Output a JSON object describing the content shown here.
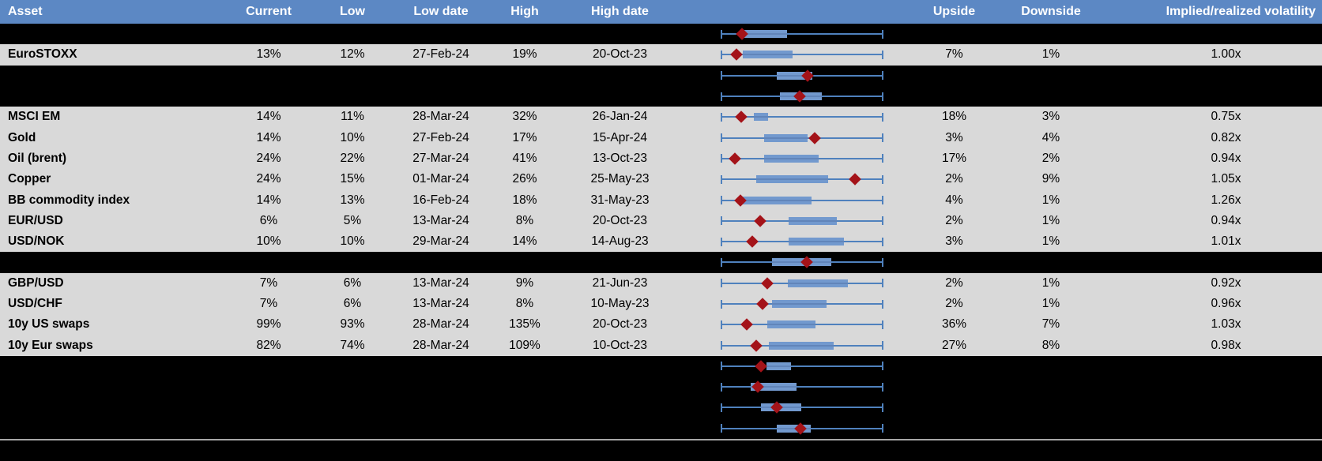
{
  "colors": {
    "header_bg": "#5C88C4",
    "header_text": "#FFFFFF",
    "row_bg": "#D9D9D9",
    "hidden_row_bg": "#000000",
    "body_text": "#000000",
    "box_fill": "#7299CE",
    "whisker_blue": "#4F81BD",
    "marker_red": "#A41319",
    "divider_gray": "#A6A6A6"
  },
  "header": {
    "labels": {
      "asset": "Asset",
      "current": "Current",
      "low": "Low",
      "low_date": "Low date",
      "high": "High",
      "high_date": "High date",
      "chart": "",
      "upside": "Upside",
      "downside": "Downside",
      "implied_realized": "Implied/realized volatility"
    }
  },
  "chart_data": {
    "type": "table",
    "columns": [
      "Asset",
      "Current",
      "Low",
      "Low date",
      "High",
      "High date",
      "Upside",
      "Downside",
      "Implied/realized volatility"
    ],
    "embedded_plot": {
      "type": "boxplot-horizontal",
      "marker_shape": "diamond",
      "axis_norm": [
        0,
        1
      ],
      "note_fields": "box_lo/box_hi are box edges, marker is red diamond position, whiskers span full 0-1 range, all normalized to the shared horizontal axis"
    },
    "rows": [
      {
        "hidden": true,
        "asset": "",
        "current": "",
        "low": "",
        "low_date": "",
        "high": "",
        "high_date": "",
        "upside": "",
        "downside": "",
        "implied_realized": "",
        "box": {
          "whisker_lo": 0,
          "box_lo": 0.146,
          "marker": 0.133,
          "box_hi": 0.408,
          "whisker_hi": 1
        }
      },
      {
        "hidden": false,
        "asset": "EuroSTOXX",
        "current": "13%",
        "low": "12%",
        "low_date": "27-Feb-24",
        "high": "19%",
        "high_date": "20-Oct-23",
        "upside": "7%",
        "downside": "1%",
        "implied_realized": "1.00x",
        "box": {
          "whisker_lo": 0,
          "box_lo": 0.136,
          "marker": 0.099,
          "box_hi": 0.443,
          "whisker_hi": 1
        }
      },
      {
        "hidden": true,
        "asset": "",
        "current": "",
        "low": "",
        "low_date": "",
        "high": "",
        "high_date": "",
        "upside": "",
        "downside": "",
        "implied_realized": "",
        "box": {
          "whisker_lo": 0,
          "box_lo": 0.346,
          "marker": 0.535,
          "box_hi": 0.565,
          "whisker_hi": 1
        }
      },
      {
        "hidden": true,
        "asset": "",
        "current": "",
        "low": "",
        "low_date": "",
        "high": "",
        "high_date": "",
        "upside": "",
        "downside": "",
        "implied_realized": "",
        "box": {
          "whisker_lo": 0,
          "box_lo": 0.363,
          "marker": 0.484,
          "box_hi": 0.621,
          "whisker_hi": 1
        }
      },
      {
        "hidden": false,
        "asset": "MSCI EM",
        "current": "14%",
        "low": "11%",
        "low_date": "28-Mar-24",
        "high": "32%",
        "high_date": "26-Jan-24",
        "upside": "18%",
        "downside": "3%",
        "implied_realized": "0.75x",
        "box": {
          "whisker_lo": 0,
          "box_lo": 0.205,
          "marker": 0.125,
          "box_hi": 0.29,
          "whisker_hi": 1
        }
      },
      {
        "hidden": false,
        "asset": "Gold",
        "current": "14%",
        "low": "10%",
        "low_date": "27-Feb-24",
        "high": "17%",
        "high_date": "15-Apr-24",
        "upside": "3%",
        "downside": "4%",
        "implied_realized": "0.82x",
        "box": {
          "whisker_lo": 0,
          "box_lo": 0.265,
          "marker": 0.576,
          "box_hi": 0.533,
          "whisker_hi": 1
        }
      },
      {
        "hidden": false,
        "asset": "Oil (brent)",
        "current": "24%",
        "low": "22%",
        "low_date": "27-Mar-24",
        "high": "41%",
        "high_date": "13-Oct-23",
        "upside": "17%",
        "downside": "2%",
        "implied_realized": "0.94x",
        "box": {
          "whisker_lo": 0,
          "box_lo": 0.265,
          "marker": 0.087,
          "box_hi": 0.602,
          "whisker_hi": 1
        }
      },
      {
        "hidden": false,
        "asset": "Copper",
        "current": "24%",
        "low": "15%",
        "low_date": "01-Mar-24",
        "high": "26%",
        "high_date": "25-May-23",
        "upside": "2%",
        "downside": "9%",
        "implied_realized": "1.05x",
        "box": {
          "whisker_lo": 0,
          "box_lo": 0.22,
          "marker": 0.824,
          "box_hi": 0.659,
          "whisker_hi": 1
        }
      },
      {
        "hidden": false,
        "asset": "BB commodity index",
        "current": "14%",
        "low": "13%",
        "low_date": "16-Feb-24",
        "high": "18%",
        "high_date": "31-May-23",
        "upside": "4%",
        "downside": "1%",
        "implied_realized": "1.26x",
        "box": {
          "whisker_lo": 0,
          "box_lo": 0.133,
          "marker": 0.12,
          "box_hi": 0.557,
          "whisker_hi": 1
        }
      },
      {
        "hidden": false,
        "asset": "EUR/USD",
        "current": "6%",
        "low": "5%",
        "low_date": "13-Mar-24",
        "high": "8%",
        "high_date": "20-Oct-23",
        "upside": "2%",
        "downside": "1%",
        "implied_realized": "0.94x",
        "box": {
          "whisker_lo": 0,
          "box_lo": 0.419,
          "marker": 0.243,
          "box_hi": 0.715,
          "whisker_hi": 1
        }
      },
      {
        "hidden": false,
        "asset": "USD/NOK",
        "current": "10%",
        "low": "10%",
        "low_date": "29-Mar-24",
        "high": "14%",
        "high_date": "14-Aug-23",
        "upside": "3%",
        "downside": "1%",
        "implied_realized": "1.01x",
        "box": {
          "whisker_lo": 0,
          "box_lo": 0.416,
          "marker": 0.193,
          "box_hi": 0.759,
          "whisker_hi": 1
        }
      },
      {
        "hidden": true,
        "asset": "",
        "current": "",
        "low": "",
        "low_date": "",
        "high": "",
        "high_date": "",
        "upside": "",
        "downside": "",
        "implied_realized": "",
        "box": {
          "whisker_lo": 0,
          "box_lo": 0.314,
          "marker": 0.528,
          "box_hi": 0.678,
          "whisker_hi": 1
        }
      },
      {
        "hidden": false,
        "asset": "GBP/USD",
        "current": "7%",
        "low": "6%",
        "low_date": "13-Mar-24",
        "high": "9%",
        "high_date": "21-Jun-23",
        "upside": "2%",
        "downside": "1%",
        "implied_realized": "0.92x",
        "box": {
          "whisker_lo": 0,
          "box_lo": 0.414,
          "marker": 0.285,
          "box_hi": 0.783,
          "whisker_hi": 1
        }
      },
      {
        "hidden": false,
        "asset": "USD/CHF",
        "current": "7%",
        "low": "6%",
        "low_date": "13-Mar-24",
        "high": "8%",
        "high_date": "10-May-23",
        "upside": "2%",
        "downside": "1%",
        "implied_realized": "0.96x",
        "box": {
          "whisker_lo": 0,
          "box_lo": 0.314,
          "marker": 0.259,
          "box_hi": 0.649,
          "whisker_hi": 1
        }
      },
      {
        "hidden": false,
        "asset": "10y US swaps",
        "current": "99%",
        "low": "93%",
        "low_date": "28-Mar-24",
        "high": "135%",
        "high_date": "20-Oct-23",
        "upside": "36%",
        "downside": "7%",
        "implied_realized": "1.03x",
        "box": {
          "whisker_lo": 0,
          "box_lo": 0.286,
          "marker": 0.16,
          "box_hi": 0.584,
          "whisker_hi": 1
        }
      },
      {
        "hidden": false,
        "asset": "10y Eur swaps",
        "current": "82%",
        "low": "74%",
        "low_date": "28-Mar-24",
        "high": "109%",
        "high_date": "10-Oct-23",
        "upside": "27%",
        "downside": "8%",
        "implied_realized": "0.98x",
        "box": {
          "whisker_lo": 0,
          "box_lo": 0.295,
          "marker": 0.22,
          "box_hi": 0.694,
          "whisker_hi": 1
        }
      },
      {
        "hidden": true,
        "asset": "",
        "current": "",
        "low": "",
        "low_date": "",
        "high": "",
        "high_date": "",
        "upside": "",
        "downside": "",
        "implied_realized": "",
        "box": {
          "whisker_lo": 0,
          "box_lo": 0.282,
          "marker": 0.246,
          "box_hi": 0.432,
          "whisker_hi": 1
        }
      },
      {
        "hidden": true,
        "asset": "",
        "current": "",
        "low": "",
        "low_date": "",
        "high": "",
        "high_date": "",
        "upside": "",
        "downside": "",
        "implied_realized": "",
        "box": {
          "whisker_lo": 0,
          "box_lo": 0.184,
          "marker": 0.23,
          "box_hi": 0.465,
          "whisker_hi": 1
        }
      },
      {
        "hidden": true,
        "asset": "",
        "current": "",
        "low": "",
        "low_date": "",
        "high": "",
        "high_date": "",
        "upside": "",
        "downside": "",
        "implied_realized": "",
        "box": {
          "whisker_lo": 0,
          "box_lo": 0.246,
          "marker": 0.346,
          "box_hi": 0.497,
          "whisker_hi": 1
        }
      },
      {
        "hidden": true,
        "asset": "",
        "current": "",
        "low": "",
        "low_date": "",
        "high": "",
        "high_date": "",
        "upside": "",
        "downside": "",
        "implied_realized": "",
        "box": {
          "whisker_lo": 0,
          "box_lo": 0.346,
          "marker": 0.489,
          "box_hi": 0.553,
          "whisker_hi": 1
        }
      }
    ]
  }
}
